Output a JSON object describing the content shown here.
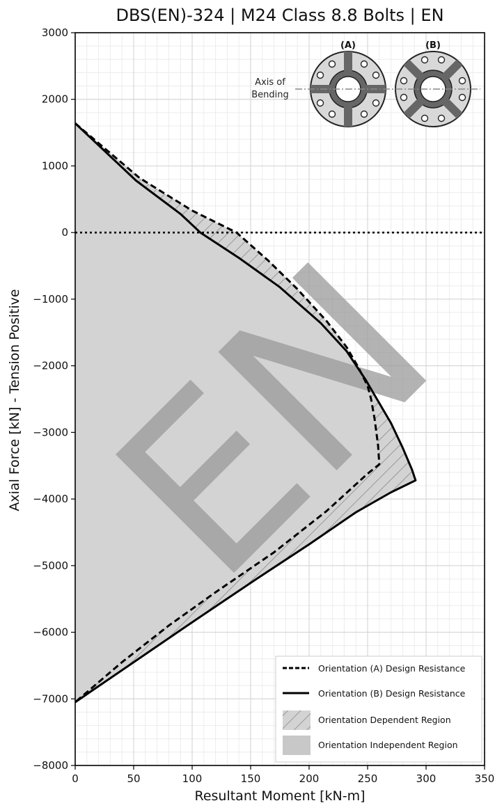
{
  "chart_data": {
    "type": "line",
    "title": "DBS(EN)-324 | M24 Class 8.8 Bolts | EN",
    "xlabel": "Resultant Moment [kN-m]",
    "ylabel": "Axial Force [kN] - Tension Positive",
    "xlim": [
      0,
      350
    ],
    "ylim": [
      -8000,
      3000
    ],
    "x_ticks": [
      0,
      50,
      100,
      150,
      200,
      250,
      300,
      350
    ],
    "y_ticks": [
      3000,
      2000,
      1000,
      0,
      -1000,
      -2000,
      -3000,
      -4000,
      -5000,
      -6000,
      -7000,
      -8000
    ],
    "grid": true,
    "minor_grid": true,
    "zero_line": true,
    "watermark": "EN",
    "legend_position": "bottom-right",
    "series": [
      {
        "name": "Orientation (A) Design Resistance",
        "style": "dashed",
        "color": "#000000",
        "points": [
          [
            0,
            1640
          ],
          [
            55,
            820
          ],
          [
            100,
            330
          ],
          [
            138,
            0
          ],
          [
            165,
            -420
          ],
          [
            190,
            -850
          ],
          [
            215,
            -1330
          ],
          [
            232,
            -1720
          ],
          [
            242,
            -2020
          ],
          [
            250,
            -2300
          ],
          [
            253,
            -2500
          ],
          [
            256,
            -2800
          ],
          [
            259,
            -3200
          ],
          [
            260,
            -3480
          ],
          [
            250,
            -3620
          ],
          [
            215,
            -4180
          ],
          [
            170,
            -4800
          ],
          [
            120,
            -5400
          ],
          [
            80,
            -5900
          ],
          [
            40,
            -6450
          ],
          [
            0,
            -7050
          ]
        ]
      },
      {
        "name": "Orientation (B) Design Resistance",
        "style": "solid",
        "color": "#000000",
        "points": [
          [
            0,
            1640
          ],
          [
            52,
            780
          ],
          [
            90,
            280
          ],
          [
            107,
            0
          ],
          [
            140,
            -380
          ],
          [
            175,
            -820
          ],
          [
            210,
            -1360
          ],
          [
            232,
            -1780
          ],
          [
            248,
            -2200
          ],
          [
            258,
            -2500
          ],
          [
            270,
            -2860
          ],
          [
            280,
            -3230
          ],
          [
            288,
            -3560
          ],
          [
            291,
            -3720
          ],
          [
            270,
            -3900
          ],
          [
            240,
            -4200
          ],
          [
            200,
            -4680
          ],
          [
            155,
            -5200
          ],
          [
            100,
            -5850
          ],
          [
            50,
            -6450
          ],
          [
            0,
            -7050
          ]
        ]
      }
    ],
    "legend": [
      {
        "label": "Orientation (A) Design Resistance",
        "kind": "dashed-line"
      },
      {
        "label": "Orientation (B) Design Resistance",
        "kind": "solid-line"
      },
      {
        "label": "Orientation Dependent Region",
        "kind": "hatched"
      },
      {
        "label": "Orientation Independent Region",
        "kind": "fill"
      }
    ],
    "inset": {
      "axis_label_line1": "Axis of",
      "axis_label_line2": "Bending",
      "label_a": "(A)",
      "label_b": "(B)"
    },
    "colors": {
      "independent_fill": "#d3d3d3",
      "hatch": "#8a8a8a",
      "watermark": "#9a9a9a"
    }
  }
}
